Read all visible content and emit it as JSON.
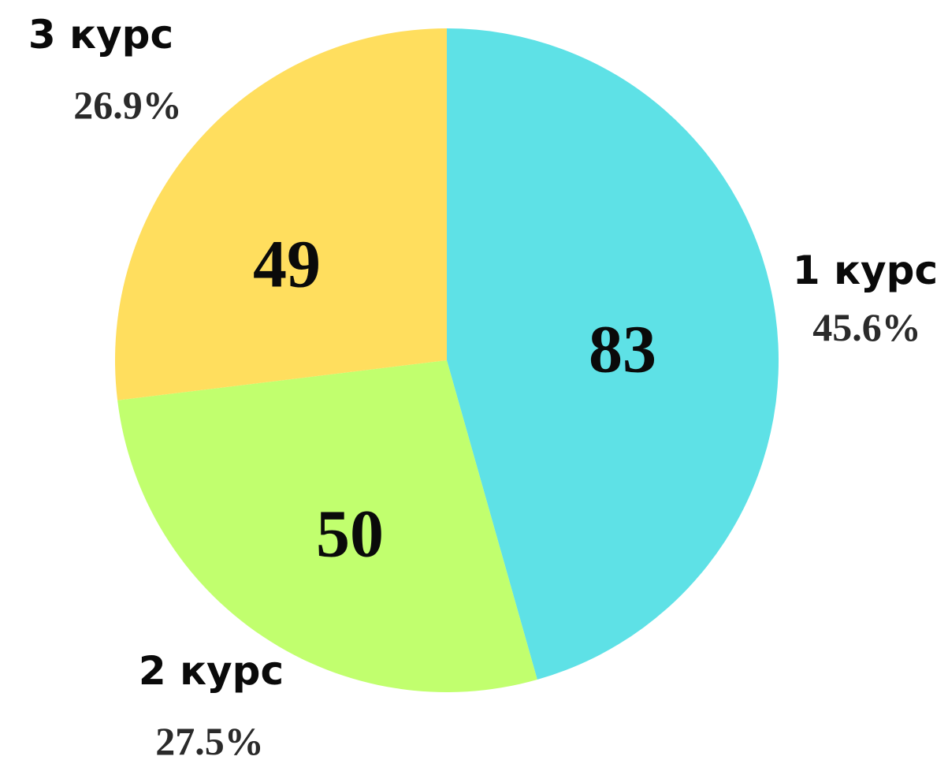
{
  "chart_data": {
    "type": "pie",
    "title": "",
    "categories": [
      "1 курс",
      "2 курс",
      "3 курс"
    ],
    "values": [
      83,
      50,
      49
    ],
    "value_labels": [
      "83",
      "50",
      "49"
    ],
    "percent_labels": [
      "45.6%",
      "27.5%",
      "26.9%"
    ],
    "colors": [
      "#5EE1E6",
      "#C1FF6E",
      "#FFDE5E"
    ],
    "start_angle": "12 o'clock",
    "direction": "clockwise",
    "legend": "none"
  }
}
